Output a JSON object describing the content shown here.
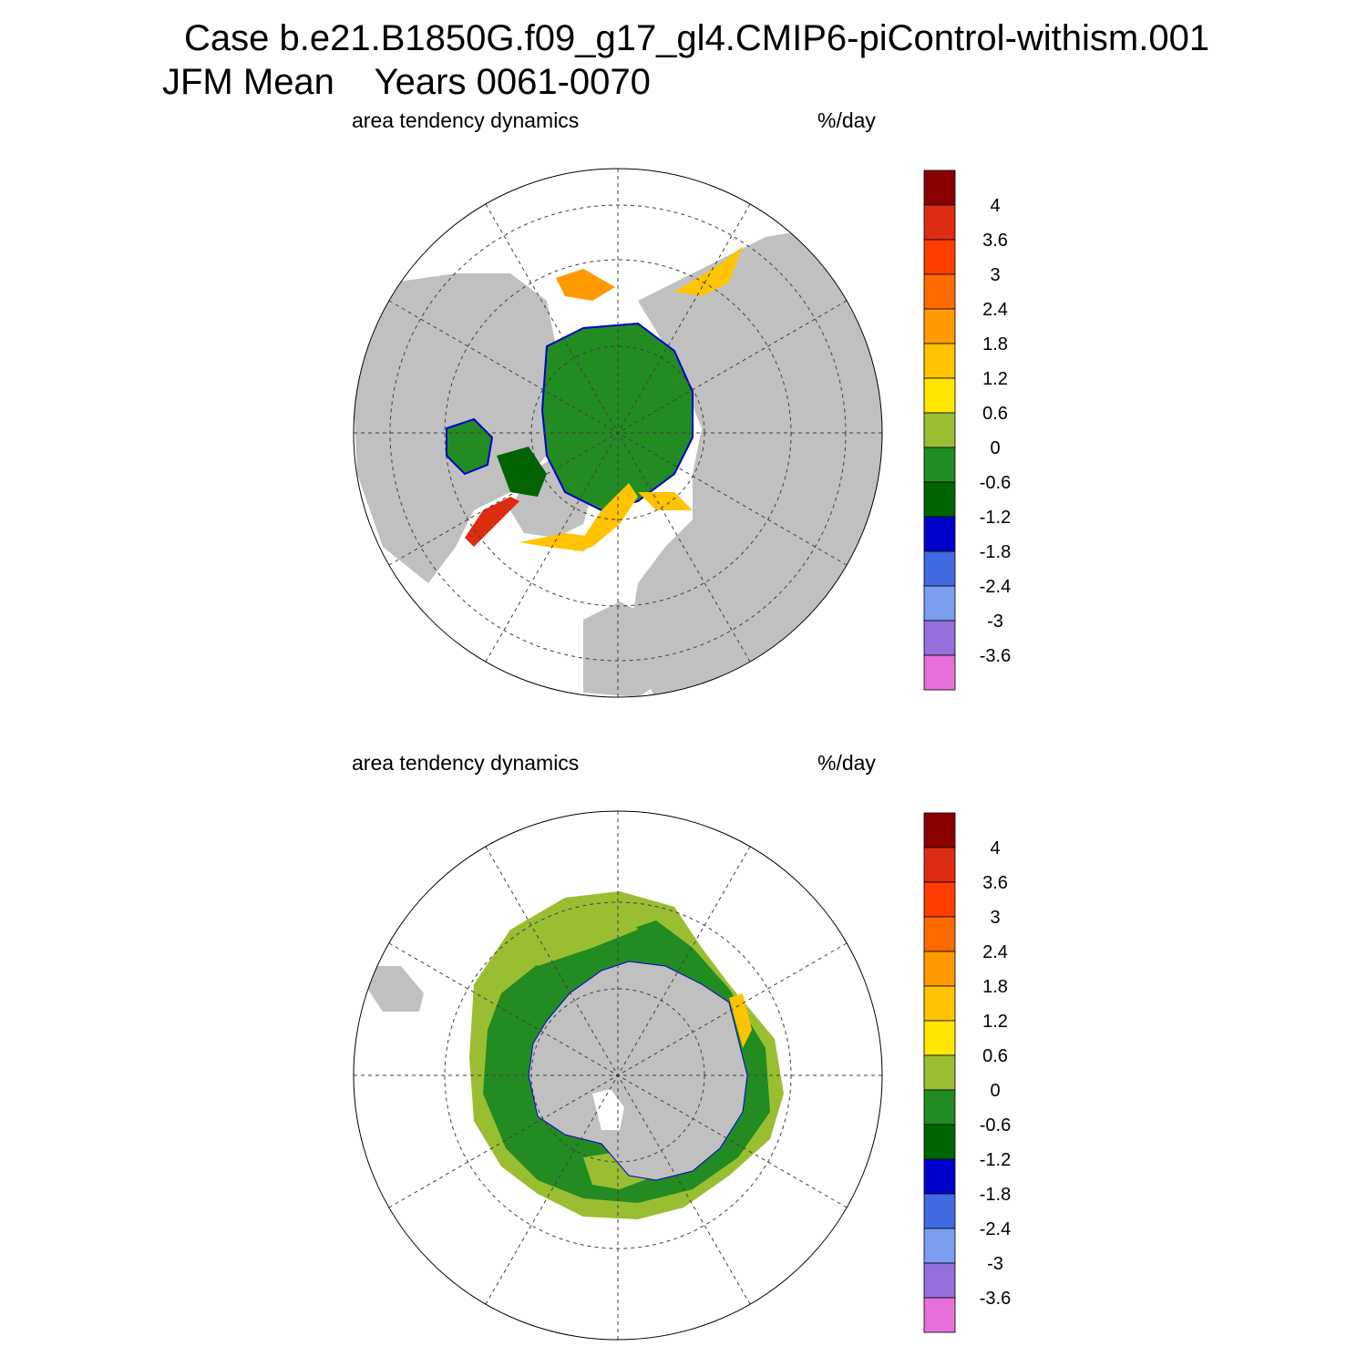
{
  "title": {
    "case": "Case b.e21.B1850G.f09_g17_gl4.CMIP6-piControl-withism.001",
    "season": "JFM Mean",
    "years": "Years 0061-0070"
  },
  "panels": [
    {
      "hemisphere": "north",
      "variable": "area tendency dynamics",
      "units": "%/day"
    },
    {
      "hemisphere": "south",
      "variable": "area tendency dynamics",
      "units": "%/day"
    }
  ],
  "colorbar": {
    "labels": [
      "4",
      "3.6",
      "3",
      "2.4",
      "1.8",
      "1.2",
      "0.6",
      "0",
      "-0.6",
      "-1.2",
      "-1.8",
      "-2.4",
      "-3",
      "-3.6"
    ],
    "colors": [
      "#8B0000",
      "#DD2C12",
      "#FF3D00",
      "#FF6A00",
      "#FF9900",
      "#FFC300",
      "#FFE600",
      "#9ABE32",
      "#228B22",
      "#006400",
      "#0000CD",
      "#4169E1",
      "#7B9EF0",
      "#9370DB",
      "#E66FDA"
    ]
  },
  "map_style": {
    "land_color": "#C0C0C0",
    "ocean_color": "#FFFFFF",
    "grid": "dashed"
  }
}
